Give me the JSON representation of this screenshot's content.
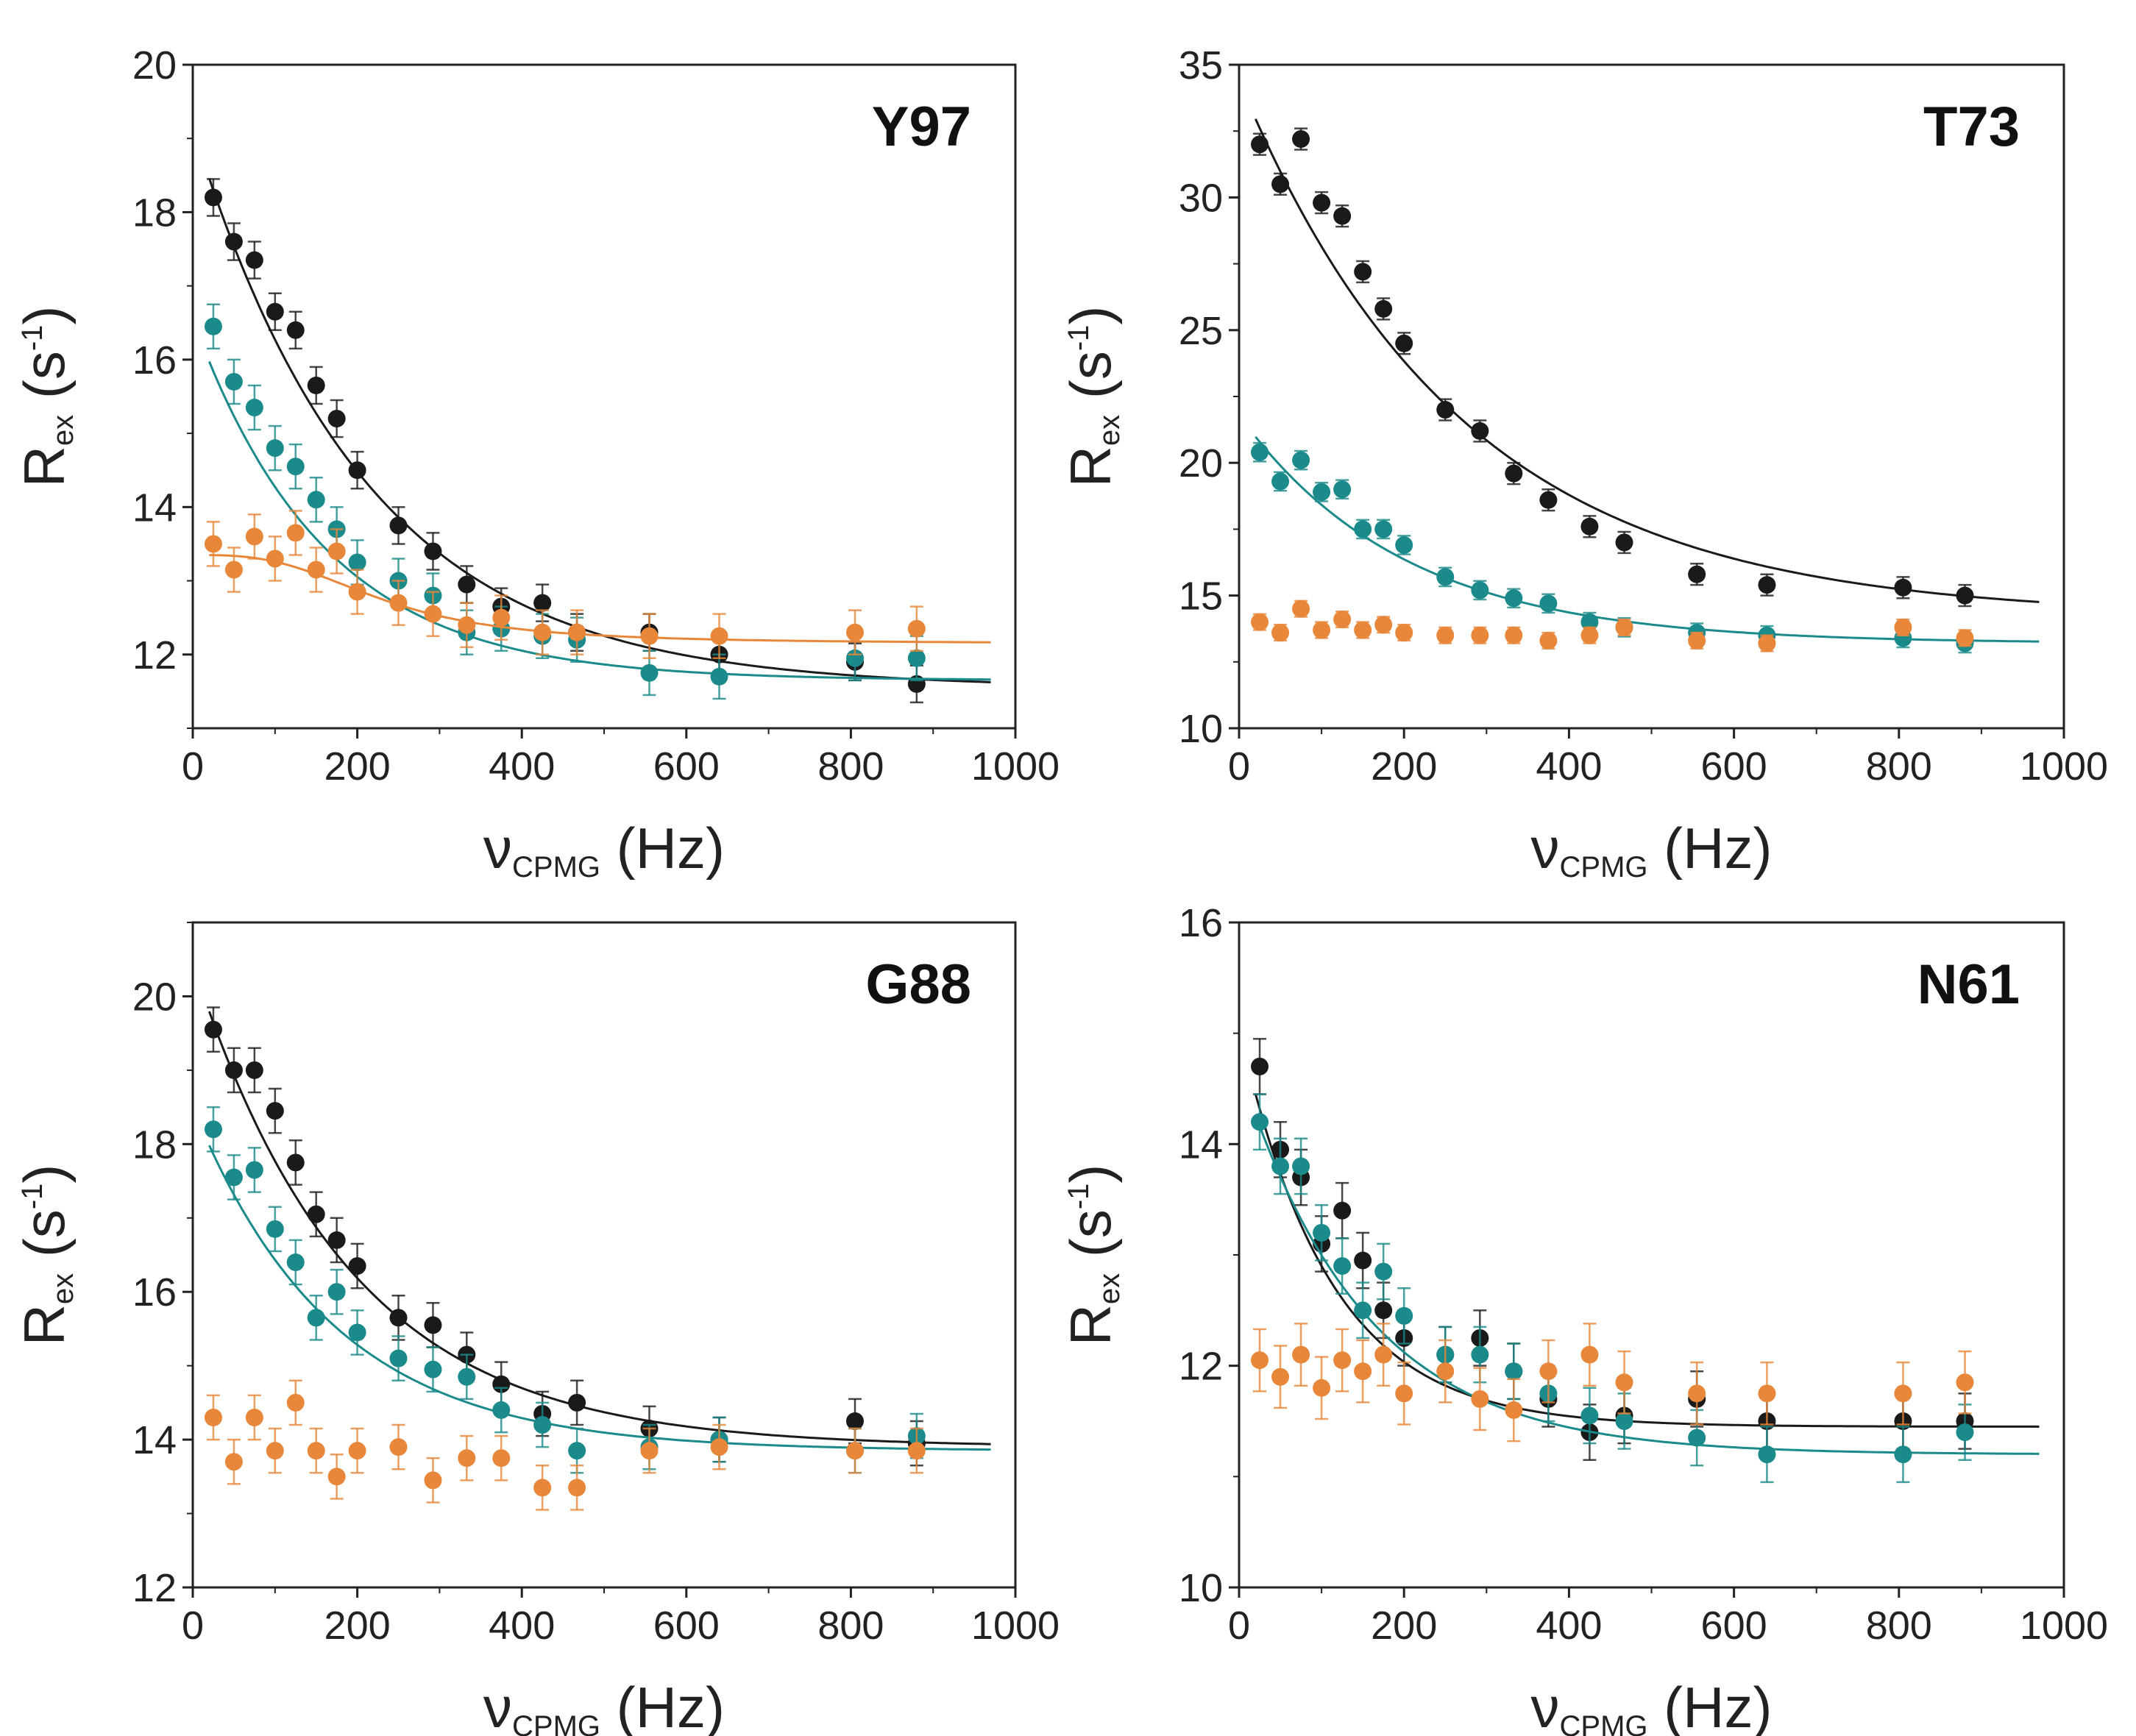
{
  "chart_data": [
    {
      "type": "scatter",
      "title": "Y97",
      "xlabel": {
        "main": "ν",
        "sub": "CPMG",
        "unit": "(Hz)"
      },
      "ylabel": {
        "main": "R",
        "sub": "ex",
        "unit_open": "(s",
        "sup": "-1",
        "unit_close": ")"
      },
      "xlim": [
        0,
        1000
      ],
      "ylim": [
        11,
        20
      ],
      "xticks": [
        "0",
        "200",
        "400",
        "600",
        "800",
        "1000"
      ],
      "yticks": [
        "12",
        "14",
        "16",
        "18",
        "20"
      ],
      "x": [
        25,
        50,
        75,
        100,
        125,
        150,
        175,
        200,
        250,
        292,
        333,
        375,
        425,
        467,
        555,
        640,
        805,
        880
      ],
      "series": [
        {
          "name": "black",
          "color": "#1a1a1a",
          "err": 0.25,
          "values": [
            18.2,
            17.6,
            17.35,
            16.65,
            16.4,
            15.65,
            15.2,
            14.5,
            13.75,
            13.4,
            12.95,
            12.65,
            12.7,
            12.3,
            12.3,
            12.0,
            11.9,
            11.6
          ],
          "fit": {
            "kind": "exp",
            "c": 11.55,
            "a": 7.6,
            "t": 210
          }
        },
        {
          "name": "teal",
          "color": "#1b8a8a",
          "err": 0.3,
          "values": [
            16.45,
            15.7,
            15.35,
            14.8,
            14.55,
            14.1,
            13.7,
            13.25,
            13.0,
            12.8,
            12.3,
            12.35,
            12.25,
            12.2,
            11.75,
            11.7,
            11.95,
            11.95
          ],
          "fit": {
            "kind": "exp",
            "c": 11.65,
            "a": 4.9,
            "t": 160
          }
        },
        {
          "name": "orange",
          "color": "#e8873a",
          "err": 0.3,
          "values": [
            13.5,
            13.15,
            13.6,
            13.3,
            13.65,
            13.15,
            13.4,
            12.85,
            12.7,
            12.55,
            12.4,
            12.5,
            12.3,
            12.3,
            12.25,
            12.25,
            12.3,
            12.35
          ],
          "fit": {
            "kind": "sig",
            "c": 12.15,
            "a": 1.2,
            "k": 230,
            "n": 3
          }
        }
      ]
    },
    {
      "type": "scatter",
      "title": "T73",
      "xlabel": {
        "main": "ν",
        "sub": "CPMG",
        "unit": "(Hz)"
      },
      "ylabel": {
        "main": "R",
        "sub": "ex",
        "unit_open": "(s",
        "sup": "-1",
        "unit_close": ")"
      },
      "xlim": [
        0,
        1000
      ],
      "ylim": [
        10,
        35
      ],
      "xticks": [
        "0",
        "200",
        "400",
        "600",
        "800",
        "1000"
      ],
      "yticks": [
        "10",
        "15",
        "20",
        "25",
        "30",
        "35"
      ],
      "x": [
        25,
        50,
        75,
        100,
        125,
        150,
        175,
        200,
        250,
        292,
        333,
        375,
        425,
        467,
        555,
        640,
        805,
        880
      ],
      "series": [
        {
          "name": "black",
          "color": "#1a1a1a",
          "err": 0.4,
          "values": [
            32.0,
            30.5,
            32.2,
            29.8,
            29.3,
            27.2,
            25.8,
            24.5,
            22.0,
            21.2,
            19.6,
            18.6,
            17.6,
            17.0,
            15.8,
            15.4,
            15.3,
            15.0
          ],
          "fit": {
            "kind": "exp",
            "c": 14.2,
            "a": 20.2,
            "t": 270
          }
        },
        {
          "name": "teal",
          "color": "#1b8a8a",
          "err": 0.35,
          "values": [
            20.4,
            19.3,
            20.1,
            18.9,
            19.0,
            17.5,
            17.5,
            16.9,
            15.7,
            15.2,
            14.9,
            14.7,
            14.0,
            13.8,
            13.6,
            13.5,
            13.4,
            13.2
          ],
          "fit": {
            "kind": "exp",
            "c": 13.2,
            "a": 8.6,
            "t": 200
          }
        },
        {
          "name": "orange",
          "color": "#e8873a",
          "err": 0.3,
          "values": [
            14.0,
            13.6,
            14.5,
            13.7,
            14.1,
            13.7,
            13.9,
            13.6,
            13.5,
            13.5,
            13.5,
            13.3,
            13.5,
            13.8,
            13.3,
            13.2,
            13.8,
            13.4
          ],
          "fit": null
        }
      ]
    },
    {
      "type": "scatter",
      "title": "G88",
      "xlabel": {
        "main": "ν",
        "sub": "CPMG",
        "unit": "(Hz)"
      },
      "ylabel": {
        "main": "R",
        "sub": "ex",
        "unit_open": "(s",
        "sup": "-1",
        "unit_close": ")"
      },
      "xlim": [
        0,
        1000
      ],
      "ylim": [
        12,
        21
      ],
      "xticks": [
        "0",
        "200",
        "400",
        "600",
        "800",
        "1000"
      ],
      "yticks": [
        "12",
        "14",
        "16",
        "18",
        "20"
      ],
      "x": [
        25,
        50,
        75,
        100,
        125,
        150,
        175,
        200,
        250,
        292,
        333,
        375,
        425,
        467,
        555,
        640,
        805,
        880
      ],
      "series": [
        {
          "name": "black",
          "color": "#1a1a1a",
          "err": 0.3,
          "values": [
            19.55,
            19.0,
            19.0,
            18.45,
            17.75,
            17.05,
            16.7,
            16.35,
            15.65,
            15.55,
            15.15,
            14.75,
            14.35,
            14.5,
            14.15,
            14.0,
            14.25,
            13.95
          ],
          "fit": {
            "kind": "exp",
            "c": 13.9,
            "a": 6.55,
            "t": 190
          }
        },
        {
          "name": "teal",
          "color": "#1b8a8a",
          "err": 0.3,
          "values": [
            18.2,
            17.55,
            17.65,
            16.85,
            16.4,
            15.65,
            16.0,
            15.45,
            15.1,
            14.95,
            14.85,
            14.4,
            14.2,
            13.85,
            13.9,
            14.0,
            13.85,
            14.05
          ],
          "fit": {
            "kind": "exp",
            "c": 13.85,
            "a": 4.65,
            "t": 170
          }
        },
        {
          "name": "orange",
          "color": "#e8873a",
          "err": 0.3,
          "values": [
            14.3,
            13.7,
            14.3,
            13.85,
            14.5,
            13.85,
            13.5,
            13.85,
            13.9,
            13.45,
            13.75,
            13.75,
            13.35,
            13.35,
            13.85,
            13.9,
            13.85,
            13.85
          ],
          "fit": null
        }
      ]
    },
    {
      "type": "scatter",
      "title": "N61",
      "xlabel": {
        "main": "ν",
        "sub": "CPMG",
        "unit": "(Hz)"
      },
      "ylabel": {
        "main": "R",
        "sub": "ex",
        "unit_open": "(s",
        "sup": "-1",
        "unit_close": ")"
      },
      "xlim": [
        0,
        1000
      ],
      "ylim": [
        10,
        16
      ],
      "xticks": [
        "0",
        "200",
        "400",
        "600",
        "800",
        "1000"
      ],
      "yticks": [
        "10",
        "12",
        "14",
        "16"
      ],
      "x": [
        25,
        50,
        75,
        100,
        125,
        150,
        175,
        200,
        250,
        292,
        333,
        375,
        425,
        467,
        555,
        640,
        805,
        880
      ],
      "series": [
        {
          "name": "black",
          "color": "#1a1a1a",
          "err": 0.25,
          "values": [
            14.7,
            13.95,
            13.7,
            13.1,
            13.4,
            12.95,
            12.5,
            12.25,
            12.1,
            12.25,
            11.95,
            11.7,
            11.4,
            11.55,
            11.7,
            11.5,
            11.5,
            11.5
          ],
          "fit": {
            "kind": "exp",
            "c": 11.45,
            "a": 3.6,
            "t": 110
          }
        },
        {
          "name": "teal",
          "color": "#1b8a8a",
          "err": 0.25,
          "values": [
            14.2,
            13.8,
            13.8,
            13.2,
            12.9,
            12.5,
            12.85,
            12.45,
            12.1,
            12.1,
            11.95,
            11.75,
            11.55,
            11.5,
            11.35,
            11.2,
            11.2,
            11.4
          ],
          "fit": {
            "kind": "exp",
            "c": 11.2,
            "a": 3.5,
            "t": 150
          }
        },
        {
          "name": "orange",
          "color": "#e8873a",
          "err": 0.28,
          "values": [
            12.05,
            11.9,
            12.1,
            11.8,
            12.05,
            11.95,
            12.1,
            11.75,
            11.95,
            11.7,
            11.6,
            11.95,
            12.1,
            11.85,
            11.75,
            11.75,
            11.75,
            11.85
          ],
          "fit": null
        }
      ]
    }
  ]
}
